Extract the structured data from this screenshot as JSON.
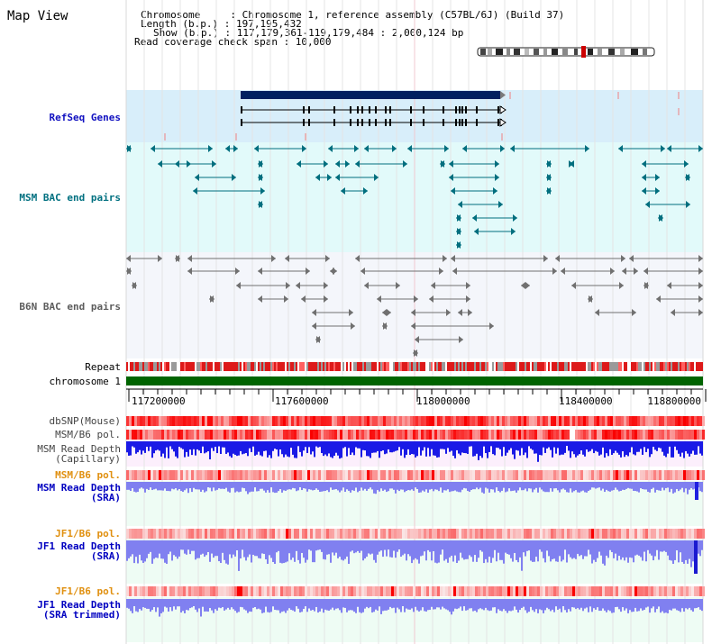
{
  "title": "Map View",
  "info": {
    "line1": "Chromosome     : Chromosome 1, reference assembly (C57BL/6J) (Build 37)",
    "line2": "Length (b.p.) : 197,195,432",
    "line3": "Show (b.p.) : 117,179,361-119,179,484 : 2,000,124 bp",
    "line4": "Read coverage check span : 10,000"
  },
  "labels": {
    "refseq": "RefSeq Genes",
    "msm_bac": "MSM BAC end pairs",
    "b6n_bac": "B6N BAC end pairs",
    "repeat": "Repeat",
    "chromosome": "chromosome 1",
    "dbsnp": "dbSNP(Mouse)",
    "msm_pol1": "MSM/B6 pol.",
    "msm_depth_cap": "MSM Read Depth\n(Capillary)",
    "msm_pol2": "MSM/B6 pol.",
    "msm_depth_sra": "MSM Read Depth\n(SRA)",
    "jf1_pol1": "JF1/B6 pol.",
    "jf1_depth_sra": "JF1 Read Depth\n(SRA)",
    "jf1_pol2": "JF1/B6 pol.",
    "jf1_depth_trim": "JF1 Read Depth\n(SRA trimmed)"
  },
  "ruler_ticks": [
    "117200000",
    "117600000",
    "118000000",
    "118400000",
    "118800000"
  ],
  "colors": {
    "refseq_bg": "#d8eefa",
    "msm_bac_bg": "#e2fafa",
    "b6n_bac_bg": "#f4f6fb",
    "sra_bg": "#eefcf4",
    "cap_bg": "#fceffc",
    "chromosome_bar": "#006400",
    "refseq_thick": "#002060",
    "msm_feature": "#006e7e",
    "b6n_feature": "#707070",
    "snp": "#ff0000",
    "depth_cap": "#1a1ae6",
    "depth_sra": "#8080f0"
  }
}
